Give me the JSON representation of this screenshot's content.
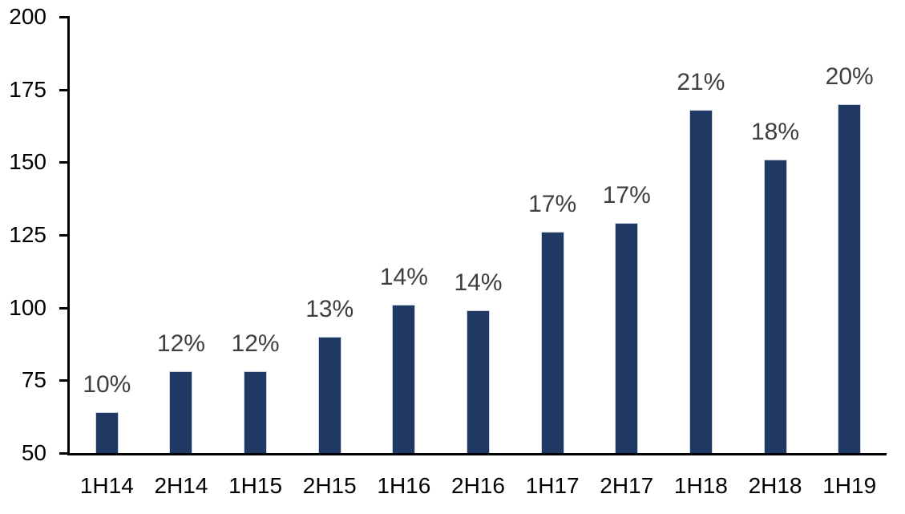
{
  "chart_data": {
    "type": "bar",
    "title": "",
    "xlabel": "",
    "ylabel": "",
    "categories": [
      "1H14",
      "2H14",
      "1H15",
      "2H15",
      "1H16",
      "2H16",
      "1H17",
      "2H17",
      "1H18",
      "2H18",
      "1H19"
    ],
    "values": [
      64,
      78,
      78,
      90,
      101,
      99,
      126,
      129,
      168,
      151,
      170
    ],
    "bar_labels": [
      "10%",
      "12%",
      "12%",
      "13%",
      "14%",
      "14%",
      "17%",
      "17%",
      "21%",
      "18%",
      "20%"
    ],
    "ylim": [
      50,
      200
    ],
    "yticks": [
      50,
      75,
      100,
      125,
      150,
      175,
      200
    ],
    "grid": false,
    "legend": false,
    "colors": {
      "bar_fill": "#1F3864",
      "bar_border": "#C9D1DE",
      "data_label": "#3F3F3F",
      "axis": "#000000",
      "tick_label": "#000000",
      "background": "#FFFFFF"
    }
  }
}
